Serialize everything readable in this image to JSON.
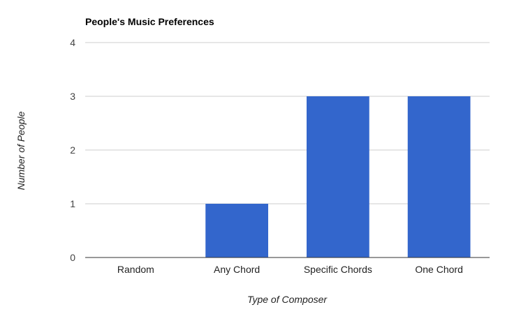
{
  "chart_data": {
    "type": "bar",
    "title": "People's Music Preferences",
    "xlabel": "Type of Composer",
    "ylabel": "Number of People",
    "categories": [
      "Random",
      "Any Chord",
      "Specific Chords",
      "One Chord"
    ],
    "values": [
      0,
      1,
      3,
      3
    ],
    "ylim": [
      0,
      4
    ],
    "yticks": [
      "0",
      "1",
      "2",
      "3",
      "4"
    ],
    "grid": true,
    "legend": "none",
    "bar_color": "#3366cc",
    "gridline_color": "#cccccc",
    "baseline_color": "#333333"
  }
}
